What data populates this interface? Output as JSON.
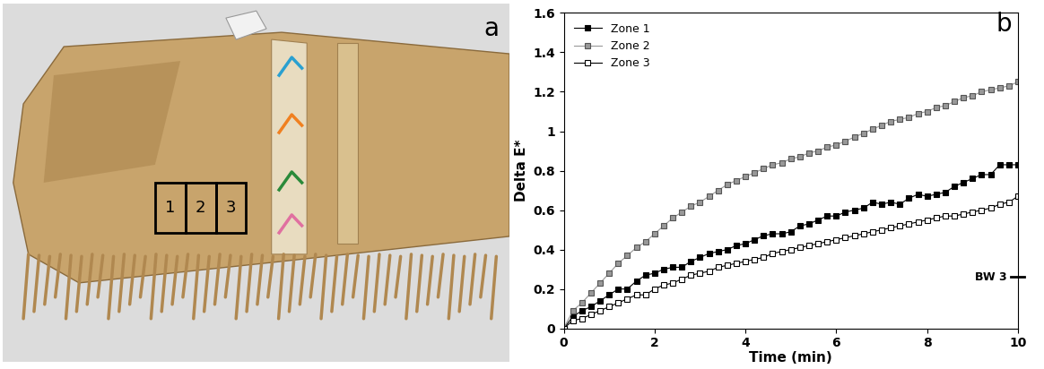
{
  "chart_data": {
    "type": "line",
    "panel_label": "b",
    "xlabel": "Time (min)",
    "ylabel": "Delta E*",
    "xlim": [
      0,
      10
    ],
    "ylim": [
      0,
      1.6
    ],
    "xticks": [
      0,
      2,
      4,
      6,
      8,
      10
    ],
    "yticks": [
      0,
      0.2,
      0.4,
      0.6,
      0.8,
      1,
      1.2,
      1.4,
      1.6
    ],
    "legend": "upper left",
    "annotations": [
      {
        "text": "BW 3",
        "y": 0.26
      }
    ],
    "x": [
      0,
      0.2,
      0.4,
      0.6,
      0.8,
      1.0,
      1.2,
      1.4,
      1.6,
      1.8,
      2.0,
      2.2,
      2.4,
      2.6,
      2.8,
      3.0,
      3.2,
      3.4,
      3.6,
      3.8,
      4.0,
      4.2,
      4.4,
      4.6,
      4.8,
      5.0,
      5.2,
      5.4,
      5.6,
      5.8,
      6.0,
      6.2,
      6.4,
      6.6,
      6.8,
      7.0,
      7.2,
      7.4,
      7.6,
      7.8,
      8.0,
      8.2,
      8.4,
      8.6,
      8.8,
      9.0,
      9.2,
      9.4,
      9.6,
      9.8,
      10
    ],
    "series": [
      {
        "name": "Zone 1",
        "color": "#000000",
        "marker": "square",
        "values": [
          0,
          0.06,
          0.09,
          0.11,
          0.14,
          0.17,
          0.2,
          0.2,
          0.24,
          0.27,
          0.28,
          0.3,
          0.31,
          0.31,
          0.34,
          0.36,
          0.38,
          0.39,
          0.4,
          0.42,
          0.43,
          0.45,
          0.47,
          0.48,
          0.48,
          0.49,
          0.52,
          0.53,
          0.55,
          0.57,
          0.57,
          0.59,
          0.6,
          0.61,
          0.64,
          0.63,
          0.64,
          0.63,
          0.66,
          0.68,
          0.67,
          0.68,
          0.69,
          0.72,
          0.74,
          0.76,
          0.78,
          0.78,
          0.83,
          0.83,
          0.83
        ]
      },
      {
        "name": "Zone 2",
        "color": "#999999",
        "marker": "square",
        "values": [
          0,
          0.09,
          0.13,
          0.18,
          0.23,
          0.28,
          0.33,
          0.37,
          0.41,
          0.44,
          0.48,
          0.52,
          0.56,
          0.59,
          0.62,
          0.64,
          0.67,
          0.7,
          0.73,
          0.75,
          0.77,
          0.79,
          0.81,
          0.83,
          0.84,
          0.86,
          0.87,
          0.89,
          0.9,
          0.92,
          0.93,
          0.95,
          0.97,
          0.99,
          1.01,
          1.03,
          1.05,
          1.06,
          1.07,
          1.09,
          1.1,
          1.12,
          1.13,
          1.15,
          1.17,
          1.18,
          1.2,
          1.21,
          1.22,
          1.23,
          1.25
        ]
      },
      {
        "name": "Zone 3",
        "color": "#ffffff",
        "marker": "square",
        "values": [
          0,
          0.04,
          0.05,
          0.07,
          0.09,
          0.11,
          0.13,
          0.15,
          0.17,
          0.17,
          0.2,
          0.22,
          0.23,
          0.25,
          0.27,
          0.28,
          0.29,
          0.31,
          0.32,
          0.33,
          0.34,
          0.35,
          0.36,
          0.38,
          0.39,
          0.4,
          0.41,
          0.42,
          0.43,
          0.44,
          0.45,
          0.46,
          0.47,
          0.48,
          0.49,
          0.5,
          0.51,
          0.52,
          0.53,
          0.54,
          0.55,
          0.56,
          0.57,
          0.57,
          0.58,
          0.59,
          0.6,
          0.61,
          0.63,
          0.64,
          0.67
        ]
      }
    ]
  },
  "photo": {
    "panel_label": "a",
    "zones": [
      "1",
      "2",
      "3"
    ]
  }
}
